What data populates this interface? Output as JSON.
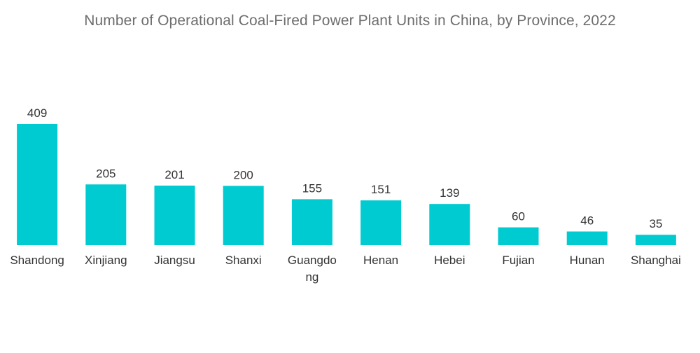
{
  "chart_data": {
    "type": "bar",
    "title": "Number of Operational Coal-Fired Power Plant Units in China, by Province, 2022",
    "xlabel": "",
    "ylabel": "",
    "ylim": [
      0,
      409
    ],
    "grid": false,
    "legend": "none",
    "bar_color": "#00cbd1",
    "categories": [
      "Shandong",
      "Xinjiang",
      "Jiangsu",
      "Shanxi",
      "Guangdong",
      "Henan",
      "Hebei",
      "Fujian",
      "Hunan",
      "Shanghai"
    ],
    "category_display_lines": [
      [
        "Shandong"
      ],
      [
        "Xinjiang"
      ],
      [
        "Jiangsu"
      ],
      [
        "Shanxi"
      ],
      [
        "Guangdo",
        "ng"
      ],
      [
        "Henan"
      ],
      [
        "Hebei"
      ],
      [
        "Fujian"
      ],
      [
        "Hunan"
      ],
      [
        "Shanghai"
      ]
    ],
    "values": [
      409,
      205,
      201,
      200,
      155,
      151,
      139,
      60,
      46,
      35
    ]
  }
}
